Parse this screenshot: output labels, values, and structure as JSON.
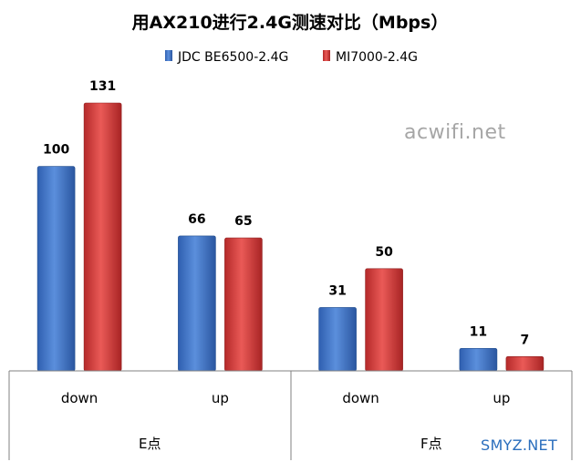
{
  "chart_data": {
    "type": "bar",
    "title": "用AX210进行2.4G测速对比（Mbps）",
    "xlabel": "",
    "ylabel": "",
    "ylim": [
      0,
      131
    ],
    "grid": false,
    "legend_position": "top",
    "groups": [
      {
        "label": "E点",
        "categories": [
          "down",
          "up"
        ]
      },
      {
        "label": "F点",
        "categories": [
          "down",
          "up"
        ]
      }
    ],
    "categories": [
      "down",
      "up",
      "down",
      "up"
    ],
    "series": [
      {
        "name": "JDC BE6500-2.4G",
        "color": "#3a70c6",
        "values": [
          100,
          66,
          31,
          11
        ]
      },
      {
        "name": "MI7000-2.4G",
        "color": "#d83a3a",
        "values": [
          131,
          65,
          50,
          7
        ]
      }
    ]
  },
  "watermarks": {
    "top": "acwifi.net",
    "bottom": "SMYZ.NET"
  }
}
